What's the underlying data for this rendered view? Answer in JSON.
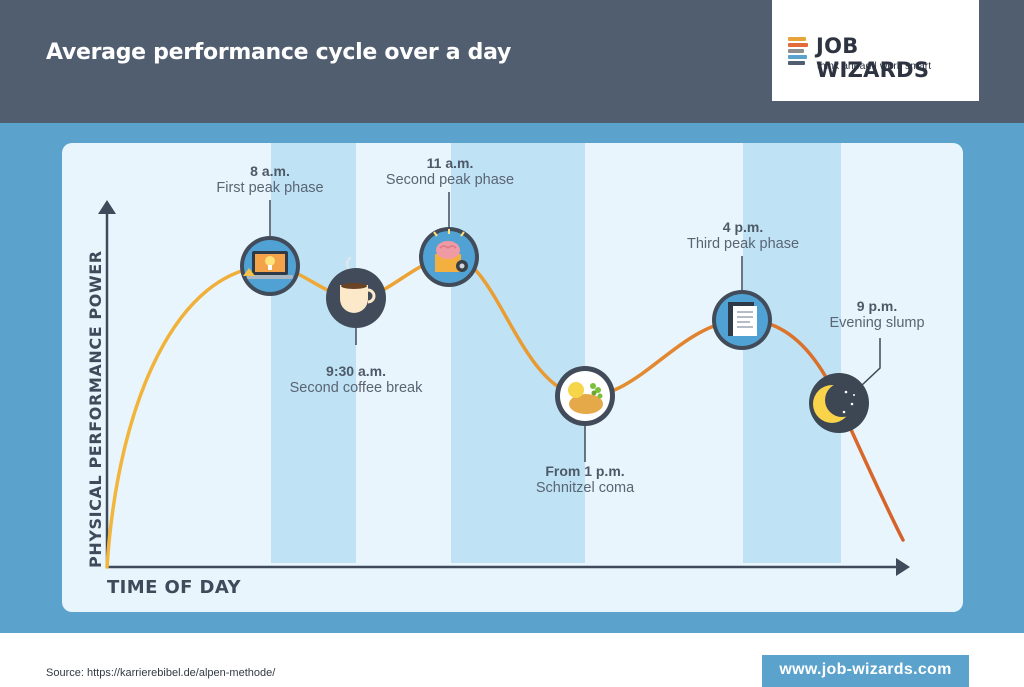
{
  "header": {
    "title": "Average performance cycle over a day"
  },
  "logo": {
    "name": "JOB WIZARDS",
    "tagline": "think ahead | work smart",
    "stripe_colors": [
      "#e8a33a",
      "#e36b3a",
      "#8e8e8e",
      "#5ba3cd",
      "#515e70"
    ]
  },
  "diagram": {
    "y_axis_label": "PHYSICAL PERFORMANCE POWER",
    "x_axis_label": "TIME OF DAY",
    "curve_colors": {
      "start": "#f0b43a",
      "end": "#d96a28"
    },
    "milestones": [
      {
        "time": "8 a.m.",
        "phase": "First peak phase",
        "icon": "laptop-lightbulb-icon"
      },
      {
        "time": "9:30 a.m.",
        "phase": "Second coffee break",
        "icon": "coffee-cup-icon"
      },
      {
        "time": "11 a.m.",
        "phase": "Second peak phase",
        "icon": "brain-gears-icon"
      },
      {
        "time": "From 1 p.m.",
        "phase": "Schnitzel coma",
        "icon": "schnitzel-plate-icon"
      },
      {
        "time": "4 p.m.",
        "phase": "Third peak phase",
        "icon": "documents-icon"
      },
      {
        "time": "9 p.m.",
        "phase": "Evening slump",
        "icon": "crescent-moon-icon"
      }
    ]
  },
  "footer": {
    "source": "Source: https://karrierebibel.de/alpen-methode/",
    "website": "www.job-wizards.com"
  },
  "colors": {
    "header_bg": "#515e70",
    "band_bg": "#5ba3cd",
    "panel_bg": "#e9f5fc",
    "stripe_bg": "#bfe3f5",
    "icon_ring": "#414b59",
    "icon_fill": "#4fa2d3"
  }
}
